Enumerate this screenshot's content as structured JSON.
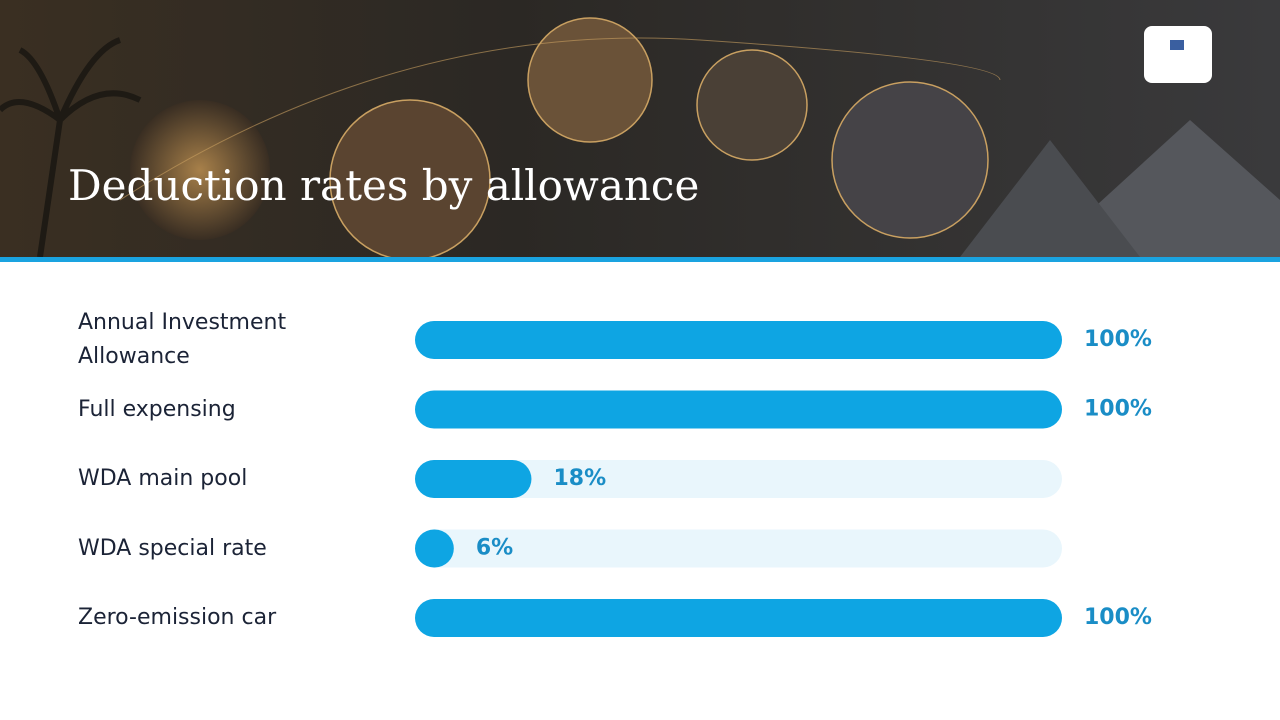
{
  "chart_data": {
    "type": "bar",
    "orientation": "horizontal",
    "title": "Deduction rates by allowance",
    "categories": [
      "Annual Investment Allowance",
      "Full expensing",
      "WDA main pool",
      "WDA special rate",
      "Zero-emission car"
    ],
    "values": [
      100,
      100,
      18,
      6,
      100
    ],
    "value_labels": [
      "100%",
      "100%",
      "18%",
      "6%",
      "100%"
    ],
    "color": "#0ea5e3",
    "xlim": [
      0,
      100
    ]
  }
}
